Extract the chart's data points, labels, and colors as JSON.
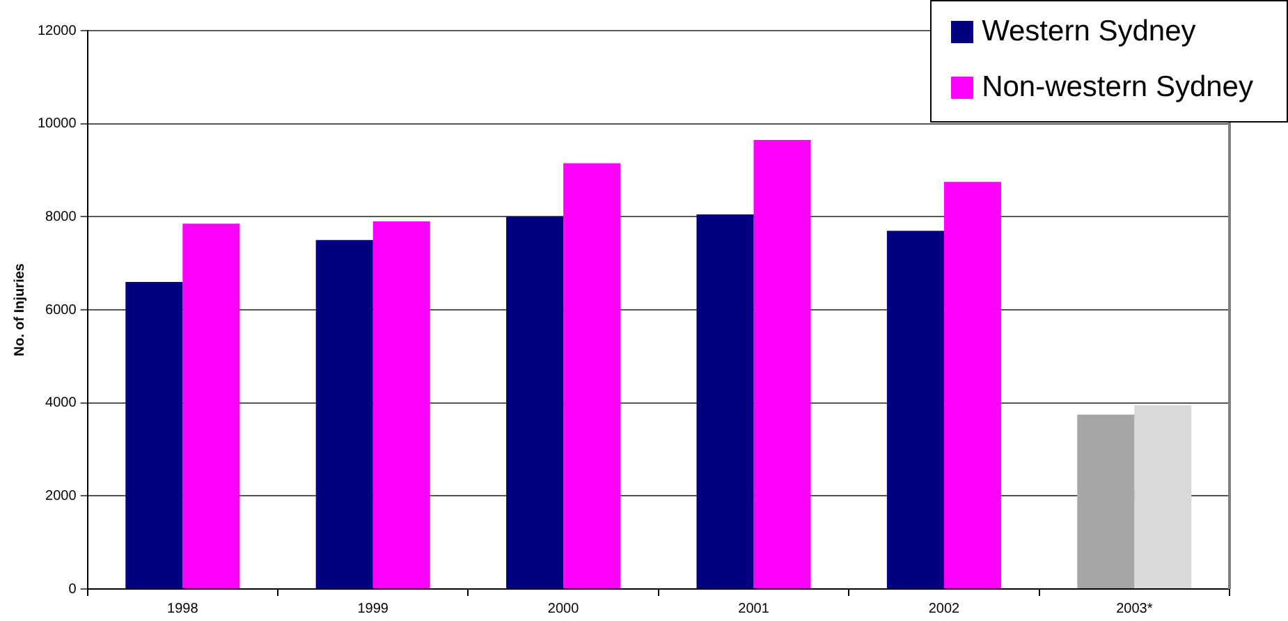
{
  "chart_data": {
    "type": "bar",
    "ylabel": "No. of Injuries",
    "categories": [
      "1998",
      "1999",
      "2000",
      "2001",
      "2002",
      "2003*"
    ],
    "series": [
      {
        "name": "Western Sydney",
        "color": "#000080",
        "colors": [
          "#000080",
          "#000080",
          "#000080",
          "#000080",
          "#000080",
          "#a6a6a6"
        ],
        "values": [
          6600,
          7500,
          8000,
          8050,
          7700,
          3750
        ]
      },
      {
        "name": "Non-western Sydney",
        "color": "#ff00ff",
        "colors": [
          "#ff00ff",
          "#ff00ff",
          "#ff00ff",
          "#ff00ff",
          "#ff00ff",
          "#d9d9d9"
        ],
        "values": [
          7850,
          7900,
          9150,
          9650,
          8750,
          3950
        ]
      }
    ],
    "ylim": [
      0,
      12000
    ],
    "yticks": [
      0,
      2000,
      4000,
      6000,
      8000,
      10000,
      12000
    ],
    "grid": "y",
    "legend": "top right"
  }
}
